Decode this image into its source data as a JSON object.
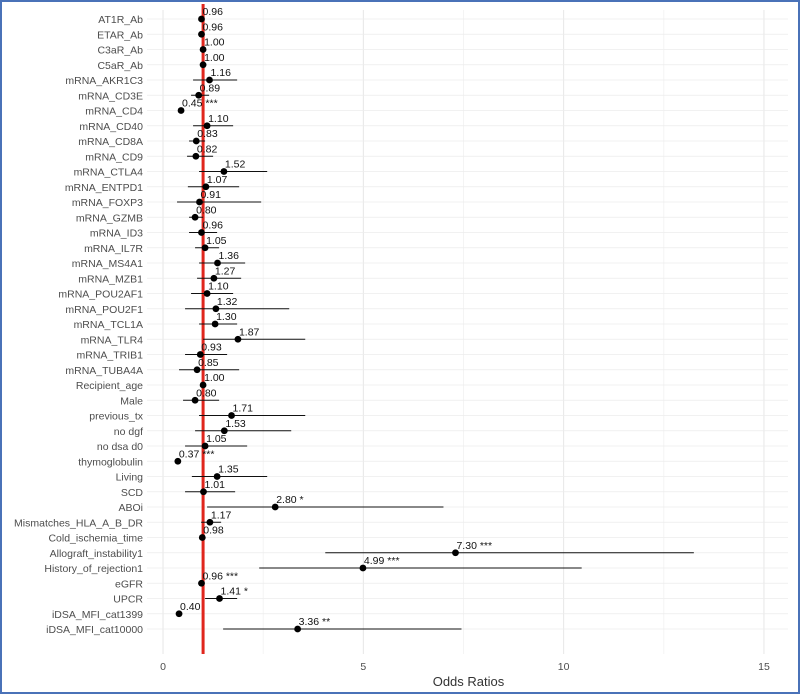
{
  "chart_data": {
    "type": "forest",
    "xlabel": "Odds Ratios",
    "xlim": [
      -0.4,
      15.6
    ],
    "xticks": [
      0,
      5,
      10,
      15
    ],
    "reference_line": 1,
    "reference_color": "#e0261d",
    "point_color": "#000000",
    "grid": true,
    "rows": [
      {
        "label": "AT1R_Ab",
        "or": 0.96,
        "lo": 0.95,
        "hi": 0.97,
        "sig": "",
        "text": "0.96"
      },
      {
        "label": "ETAR_Ab",
        "or": 0.96,
        "lo": 0.95,
        "hi": 0.97,
        "sig": "",
        "text": "0.96"
      },
      {
        "label": "C3aR_Ab",
        "or": 1.0,
        "lo": 0.99,
        "hi": 1.01,
        "sig": "",
        "text": "1.00"
      },
      {
        "label": "C5aR_Ab",
        "or": 1.0,
        "lo": 0.99,
        "hi": 1.01,
        "sig": "",
        "text": "1.00"
      },
      {
        "label": "mRNA_AKR1C3",
        "or": 1.16,
        "lo": 0.75,
        "hi": 1.85,
        "sig": "",
        "text": "1.16"
      },
      {
        "label": "mRNA_CD3E",
        "or": 0.89,
        "lo": 0.7,
        "hi": 1.15,
        "sig": "",
        "text": "0.89"
      },
      {
        "label": "mRNA_CD4",
        "or": 0.45,
        "lo": 0.45,
        "hi": 0.45,
        "sig": "***",
        "text": "0.45 ***"
      },
      {
        "label": "mRNA_CD40",
        "or": 1.1,
        "lo": 0.75,
        "hi": 1.75,
        "sig": "",
        "text": "1.10"
      },
      {
        "label": "mRNA_CD8A",
        "or": 0.83,
        "lo": 0.65,
        "hi": 1.05,
        "sig": "",
        "text": "0.83"
      },
      {
        "label": "mRNA_CD9",
        "or": 0.82,
        "lo": 0.6,
        "hi": 1.25,
        "sig": "",
        "text": "0.82"
      },
      {
        "label": "mRNA_CTLA4",
        "or": 1.52,
        "lo": 0.9,
        "hi": 2.6,
        "sig": "",
        "text": "1.52"
      },
      {
        "label": "mRNA_ENTPD1",
        "or": 1.07,
        "lo": 0.62,
        "hi": 1.9,
        "sig": "",
        "text": "1.07"
      },
      {
        "label": "mRNA_FOXP3",
        "or": 0.91,
        "lo": 0.35,
        "hi": 2.45,
        "sig": "",
        "text": "0.91"
      },
      {
        "label": "mRNA_GZMB",
        "or": 0.8,
        "lo": 0.65,
        "hi": 1.0,
        "sig": "",
        "text": "0.80"
      },
      {
        "label": "mRNA_ID3",
        "or": 0.96,
        "lo": 0.65,
        "hi": 1.35,
        "sig": "",
        "text": "0.96"
      },
      {
        "label": "mRNA_IL7R",
        "or": 1.05,
        "lo": 0.8,
        "hi": 1.4,
        "sig": "",
        "text": "1.05"
      },
      {
        "label": "mRNA_MS4A1",
        "or": 1.36,
        "lo": 0.9,
        "hi": 2.05,
        "sig": "",
        "text": "1.36"
      },
      {
        "label": "mRNA_MZB1",
        "or": 1.27,
        "lo": 0.85,
        "hi": 1.95,
        "sig": "",
        "text": "1.27"
      },
      {
        "label": "mRNA_POU2AF1",
        "or": 1.1,
        "lo": 0.7,
        "hi": 1.75,
        "sig": "",
        "text": "1.10"
      },
      {
        "label": "mRNA_POU2F1",
        "or": 1.32,
        "lo": 0.55,
        "hi": 3.15,
        "sig": "",
        "text": "1.32"
      },
      {
        "label": "mRNA_TCL1A",
        "or": 1.3,
        "lo": 0.9,
        "hi": 1.85,
        "sig": "",
        "text": "1.30"
      },
      {
        "label": "mRNA_TLR4",
        "or": 1.87,
        "lo": 1.0,
        "hi": 3.55,
        "sig": "",
        "text": "1.87"
      },
      {
        "label": "mRNA_TRIB1",
        "or": 0.93,
        "lo": 0.55,
        "hi": 1.6,
        "sig": "",
        "text": "0.93"
      },
      {
        "label": "mRNA_TUBA4A",
        "or": 0.85,
        "lo": 0.4,
        "hi": 1.9,
        "sig": "",
        "text": "0.85"
      },
      {
        "label": "Recipient_age",
        "or": 1.0,
        "lo": 0.97,
        "hi": 1.03,
        "sig": "",
        "text": "1.00"
      },
      {
        "label": "Male",
        "or": 0.8,
        "lo": 0.5,
        "hi": 1.4,
        "sig": "",
        "text": "0.80"
      },
      {
        "label": "previous_tx",
        "or": 1.71,
        "lo": 0.9,
        "hi": 3.55,
        "sig": "",
        "text": "1.71"
      },
      {
        "label": "no dgf",
        "or": 1.53,
        "lo": 0.8,
        "hi": 3.2,
        "sig": "",
        "text": "1.53"
      },
      {
        "label": "no dsa d0",
        "or": 1.05,
        "lo": 0.55,
        "hi": 2.1,
        "sig": "",
        "text": "1.05"
      },
      {
        "label": "thymoglobulin",
        "or": 0.37,
        "lo": 0.37,
        "hi": 0.37,
        "sig": "***",
        "text": "0.37 ***"
      },
      {
        "label": "Living",
        "or": 1.35,
        "lo": 0.72,
        "hi": 2.6,
        "sig": "",
        "text": "1.35"
      },
      {
        "label": "SCD",
        "or": 1.01,
        "lo": 0.55,
        "hi": 1.8,
        "sig": "",
        "text": "1.01"
      },
      {
        "label": "ABOi",
        "or": 2.8,
        "lo": 1.1,
        "hi": 7.0,
        "sig": "*",
        "text": "2.80 *"
      },
      {
        "label": "Mismatches_HLA_A_B_DR",
        "or": 1.17,
        "lo": 0.95,
        "hi": 1.45,
        "sig": "",
        "text": "1.17"
      },
      {
        "label": "Cold_ischemia_time",
        "or": 0.98,
        "lo": 0.97,
        "hi": 0.99,
        "sig": "",
        "text": "0.98"
      },
      {
        "label": "Allograft_instability1",
        "or": 7.3,
        "lo": 4.05,
        "hi": 13.25,
        "sig": "***",
        "text": "7.30 ***"
      },
      {
        "label": "History_of_rejection1",
        "or": 4.99,
        "lo": 2.4,
        "hi": 10.45,
        "sig": "***",
        "text": "4.99 ***"
      },
      {
        "label": "eGFR",
        "or": 0.96,
        "lo": 0.95,
        "hi": 0.97,
        "sig": "***",
        "text": "0.96 ***"
      },
      {
        "label": "UPCR",
        "or": 1.41,
        "lo": 1.05,
        "hi": 1.85,
        "sig": "*",
        "text": "1.41 *"
      },
      {
        "label": "iDSA_MFI_cat1399",
        "or": 0.4,
        "lo": 0.4,
        "hi": 0.4,
        "sig": "",
        "text": "0.40"
      },
      {
        "label": "iDSA_MFI_cat10000",
        "or": 3.36,
        "lo": 1.5,
        "hi": 7.45,
        "sig": "**",
        "text": "3.36 **"
      }
    ]
  }
}
